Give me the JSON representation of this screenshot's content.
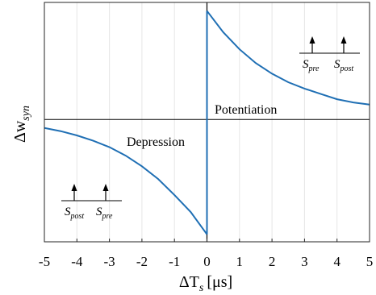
{
  "chart_data": {
    "type": "line",
    "xlabel": {
      "base": "ΔT",
      "sub": "s",
      "unit": "[μs]"
    },
    "ylabel": {
      "base": "Δw",
      "sub": "syn"
    },
    "xlim": [
      -5,
      5
    ],
    "ylim": [
      -1.15,
      1.1
    ],
    "xticks": [
      "-5",
      "-4",
      "-3",
      "-2",
      "-1",
      "0",
      "1",
      "2",
      "3",
      "4",
      "5"
    ],
    "grid": {
      "vertical": true,
      "horizontal": false
    },
    "reference_lines": {
      "horizontal_at": 0,
      "vertical_at": 0
    },
    "color": "#1f6fb4",
    "series": [
      {
        "x": [
          -5,
          -4.5,
          -4,
          -3.5,
          -3,
          -2.5,
          -2,
          -1.5,
          -1,
          -0.5,
          0
        ],
        "y": [
          -0.08,
          -0.11,
          -0.15,
          -0.2,
          -0.26,
          -0.34,
          -0.44,
          -0.56,
          -0.71,
          -0.87,
          -1.08
        ]
      },
      {
        "x": [
          0,
          0.5,
          1,
          1.5,
          2,
          2.5,
          3,
          3.5,
          4,
          4.5,
          5
        ],
        "y": [
          1.02,
          0.82,
          0.66,
          0.53,
          0.43,
          0.35,
          0.29,
          0.24,
          0.19,
          0.16,
          0.14
        ]
      }
    ],
    "annotations": {
      "potentiation": "Potentiation",
      "depression": "Depression",
      "spike_order_potentiation": [
        {
          "base": "S",
          "sub": "pre"
        },
        {
          "base": "S",
          "sub": "post"
        }
      ],
      "spike_order_depression": [
        {
          "base": "S",
          "sub": "post"
        },
        {
          "base": "S",
          "sub": "pre"
        }
      ]
    }
  }
}
